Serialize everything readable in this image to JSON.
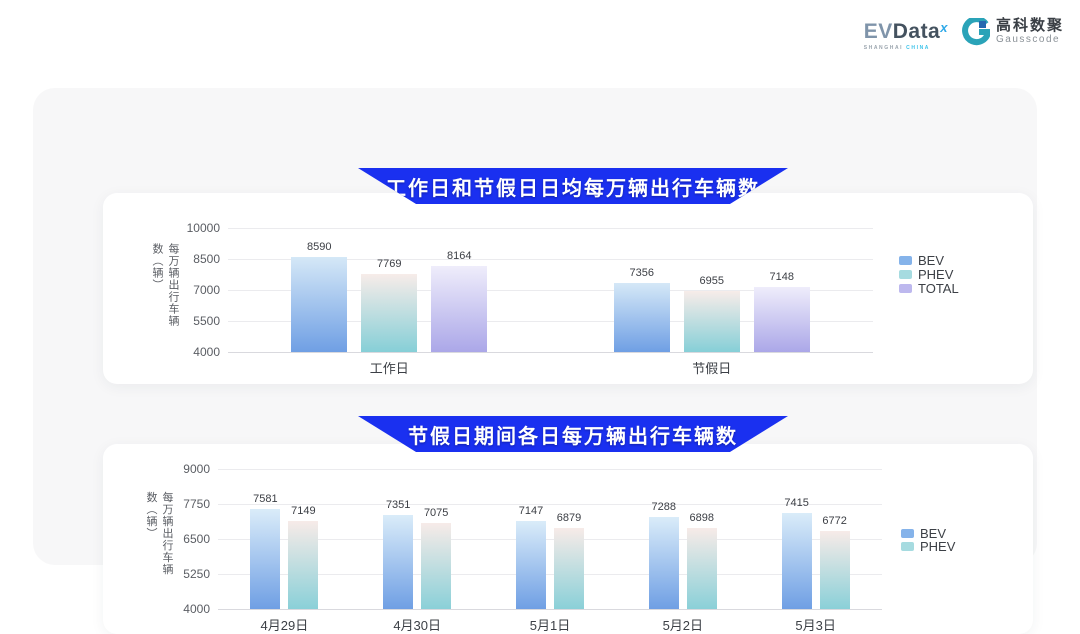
{
  "brand": {
    "evdata": {
      "ev": "EV",
      "data": "Data",
      "mark": "x",
      "sub_left": "SHANGHAI",
      "sub_right": "CHINA"
    },
    "gausscode": {
      "cn": "高科数聚",
      "en": "Gausscode"
    }
  },
  "colors": {
    "banner_blue": "#1a30f0",
    "panel_bg": "#f7f7f8",
    "card_bg": "#ffffff",
    "gridline": "#ebebee",
    "axis_line": "#d9d9de",
    "tick_text": "#5a5d63",
    "label_text": "#3b3e44",
    "category_text": "#3c4046",
    "gauss_teal": "#2aa3b8",
    "gauss_blue": "#2468b0"
  },
  "chart_data": [
    {
      "type": "bar",
      "title": "工作日和节假日日均每万辆出行车辆数",
      "categories": [
        "工作日",
        "节假日"
      ],
      "series": [
        {
          "name": "BEV",
          "values": [
            8590,
            7356
          ],
          "color_top": "#d5e8f7",
          "color_bottom": "#6f9fe4",
          "legend_color": "#85b3ea"
        },
        {
          "name": "PHEV",
          "values": [
            7769,
            6955
          ],
          "color_top": "#f7ece9",
          "color_bottom": "#86cfd7",
          "legend_color": "#a6dbe0"
        },
        {
          "name": "TOTAL",
          "values": [
            8164,
            7148
          ],
          "color_top": "#efedfb",
          "color_bottom": "#aba7e8",
          "legend_color": "#bdb8ee"
        }
      ],
      "xlabel": "",
      "ylabel": "每万辆出行车辆数（辆）",
      "yticks": [
        4000,
        5500,
        7000,
        8500,
        10000
      ],
      "ylim": [
        4000,
        10000
      ],
      "grid": true,
      "legend_position": "right"
    },
    {
      "type": "bar",
      "title": "节假日期间各日每万辆出行车辆数",
      "categories": [
        "4月29日",
        "4月30日",
        "5月1日",
        "5月2日",
        "5月3日"
      ],
      "series": [
        {
          "name": "BEV",
          "values": [
            7581,
            7351,
            7147,
            7288,
            7415
          ],
          "color_top": "#daecf9",
          "color_bottom": "#6f9fe4",
          "legend_color": "#85b3ea"
        },
        {
          "name": "PHEV",
          "values": [
            7149,
            7075,
            6879,
            6898,
            6772
          ],
          "color_top": "#f7ebe8",
          "color_bottom": "#8ad0d8",
          "legend_color": "#a6dbe0"
        }
      ],
      "xlabel": "",
      "ylabel": "每万辆出行车辆数（辆）",
      "yticks": [
        4000,
        5250,
        6500,
        7750,
        9000
      ],
      "ylim": [
        4000,
        9000
      ],
      "grid": true,
      "legend_position": "right"
    }
  ]
}
